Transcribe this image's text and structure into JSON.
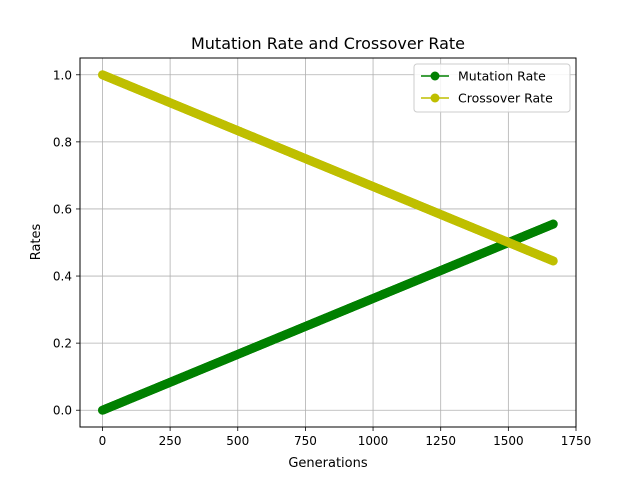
{
  "chart_data": {
    "type": "line",
    "title": "Mutation Rate and Crossover Rate",
    "xlabel": "Generations",
    "ylabel": "Rates",
    "xlim": [
      -83,
      1750
    ],
    "ylim": [
      -0.05,
      1.05
    ],
    "x_ticks": [
      0,
      250,
      500,
      750,
      1000,
      1250,
      1500,
      1750
    ],
    "y_ticks": [
      0.0,
      0.2,
      0.4,
      0.6,
      0.8,
      1.0
    ],
    "x_tick_labels": [
      "0",
      "250",
      "500",
      "750",
      "1000",
      "1250",
      "1500",
      "1750"
    ],
    "y_tick_labels": [
      "0.0",
      "0.2",
      "0.4",
      "0.6",
      "0.8",
      "1.0"
    ],
    "grid": true,
    "legend_position": "top-right",
    "series": [
      {
        "name": "Mutation Rate",
        "color": "#008000",
        "marker": "circle",
        "x": [
          0,
          1666
        ],
        "y": [
          0.0,
          0.555
        ]
      },
      {
        "name": "Crossover Rate",
        "color": "#bfbf00",
        "marker": "circle",
        "x": [
          0,
          1666
        ],
        "y": [
          1.0,
          0.445
        ]
      }
    ],
    "samples_per_series": 1667
  }
}
